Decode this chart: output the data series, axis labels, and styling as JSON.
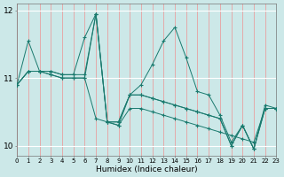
{
  "xlabel": "Humidex (Indice chaleur)",
  "bg_color": "#cce8e8",
  "plot_bg_color": "#cce8e8",
  "line_color": "#1a7a6e",
  "series": [
    [
      10.9,
      11.55,
      11.1,
      11.1,
      11.05,
      11.05,
      11.6,
      11.95,
      10.35,
      10.35,
      10.75,
      10.9,
      11.2,
      11.55,
      11.75,
      11.3,
      10.8,
      10.75,
      10.45,
      10.05,
      10.3,
      9.95,
      10.6,
      10.55
    ],
    [
      10.9,
      11.1,
      11.1,
      11.05,
      11.0,
      11.0,
      11.0,
      10.4,
      10.35,
      10.3,
      10.55,
      10.55,
      10.5,
      10.45,
      10.4,
      10.35,
      10.3,
      10.25,
      10.2,
      10.15,
      10.1,
      10.05,
      10.55,
      10.55
    ],
    [
      10.9,
      11.1,
      11.1,
      11.05,
      11.0,
      11.0,
      11.0,
      11.95,
      10.35,
      10.35,
      10.75,
      10.75,
      10.7,
      10.65,
      10.6,
      10.55,
      10.5,
      10.45,
      10.4,
      10.0,
      10.3,
      9.95,
      10.55,
      10.55
    ],
    [
      10.9,
      11.1,
      11.1,
      11.1,
      11.05,
      11.05,
      11.05,
      11.95,
      10.35,
      10.3,
      10.75,
      10.75,
      10.7,
      10.65,
      10.6,
      10.55,
      10.5,
      10.45,
      10.4,
      10.0,
      10.3,
      9.95,
      10.55,
      10.55
    ]
  ],
  "xlim": [
    0,
    23
  ],
  "ylim": [
    9.85,
    12.1
  ],
  "yticks": [
    10,
    11,
    12
  ],
  "xticks": [
    0,
    1,
    2,
    3,
    4,
    5,
    6,
    7,
    8,
    9,
    10,
    11,
    12,
    13,
    14,
    15,
    16,
    17,
    18,
    19,
    20,
    21,
    22,
    23
  ],
  "xtick_labels": [
    "0",
    "1",
    "2",
    "3",
    "4",
    "5",
    "6",
    "7",
    "8",
    "9",
    "10",
    "11",
    "12",
    "13",
    "14",
    "15",
    "16",
    "17",
    "18",
    "19",
    "20",
    "21",
    "22",
    "23"
  ],
  "vgrid_color": "#e8a0a0",
  "hgrid_color": "#ffffff",
  "figsize": [
    3.2,
    2.0
  ],
  "dpi": 100
}
